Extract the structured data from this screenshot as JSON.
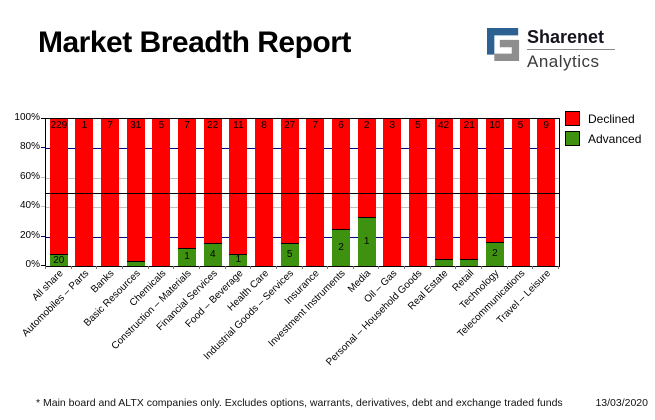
{
  "header": {
    "title": "Market Breadth Report",
    "logo_line1": "Sharenet",
    "logo_line2": "Analytics",
    "logo_blue": "#2c6191",
    "logo_gray": "#8e8e8e"
  },
  "legend": {
    "position": "top-right of plot",
    "items": [
      {
        "label": "Declined",
        "color": "#ff0000"
      },
      {
        "label": "Advanced",
        "color": "#3f920f"
      }
    ]
  },
  "footer": {
    "note": "* Main board and ALTX companies only. Excludes options, warrants, derivatives, debt and exchange traded funds",
    "date": "13/03/2020"
  },
  "chart_data": {
    "type": "bar",
    "subtype": "100%-stacked-column",
    "title": "Market Breadth Report",
    "xlabel": "",
    "ylabel": "",
    "categories": [
      "All share",
      "Automobiles – Parts",
      "Banks",
      "Basic Resources",
      "Chemicals",
      "Construction – Materials",
      "Financial Services",
      "Food – Beverage",
      "Health Care",
      "Industrial Goods – Services",
      "Insurance",
      "Investment Instruments",
      "Media",
      "Oil – Gas",
      "Personal – Household Goods",
      "Real Estate",
      "Retail",
      "Technology",
      "Telecommunications",
      "Travel – Leisure"
    ],
    "series": [
      {
        "name": "Declined",
        "color": "#ff0000",
        "counts": [
          229,
          1,
          7,
          31,
          5,
          7,
          22,
          11,
          8,
          27,
          7,
          6,
          2,
          3,
          5,
          42,
          21,
          10,
          5,
          9
        ]
      },
      {
        "name": "Advanced",
        "color": "#3f920f",
        "counts": [
          20,
          0,
          0,
          1,
          0,
          1,
          4,
          1,
          0,
          5,
          0,
          2,
          1,
          0,
          0,
          2,
          1,
          2,
          0,
          0
        ]
      }
    ],
    "value_labels": "raw counts printed inside segments; advanced count hidden when segment too small",
    "y_axis": {
      "min": 0,
      "max": 100,
      "tick_labels": [
        "0%",
        "20%",
        "40%",
        "60%",
        "80%",
        "100%"
      ]
    },
    "reference_line": {
      "value": 50,
      "color": "#000000"
    },
    "gridlines": [
      {
        "value": 20,
        "color": "#000080"
      },
      {
        "value": 40,
        "color": "#c0c0c0"
      },
      {
        "value": 60,
        "color": "#c0c0c0"
      },
      {
        "value": 80,
        "color": "#000080"
      }
    ],
    "legend_position": "right"
  }
}
